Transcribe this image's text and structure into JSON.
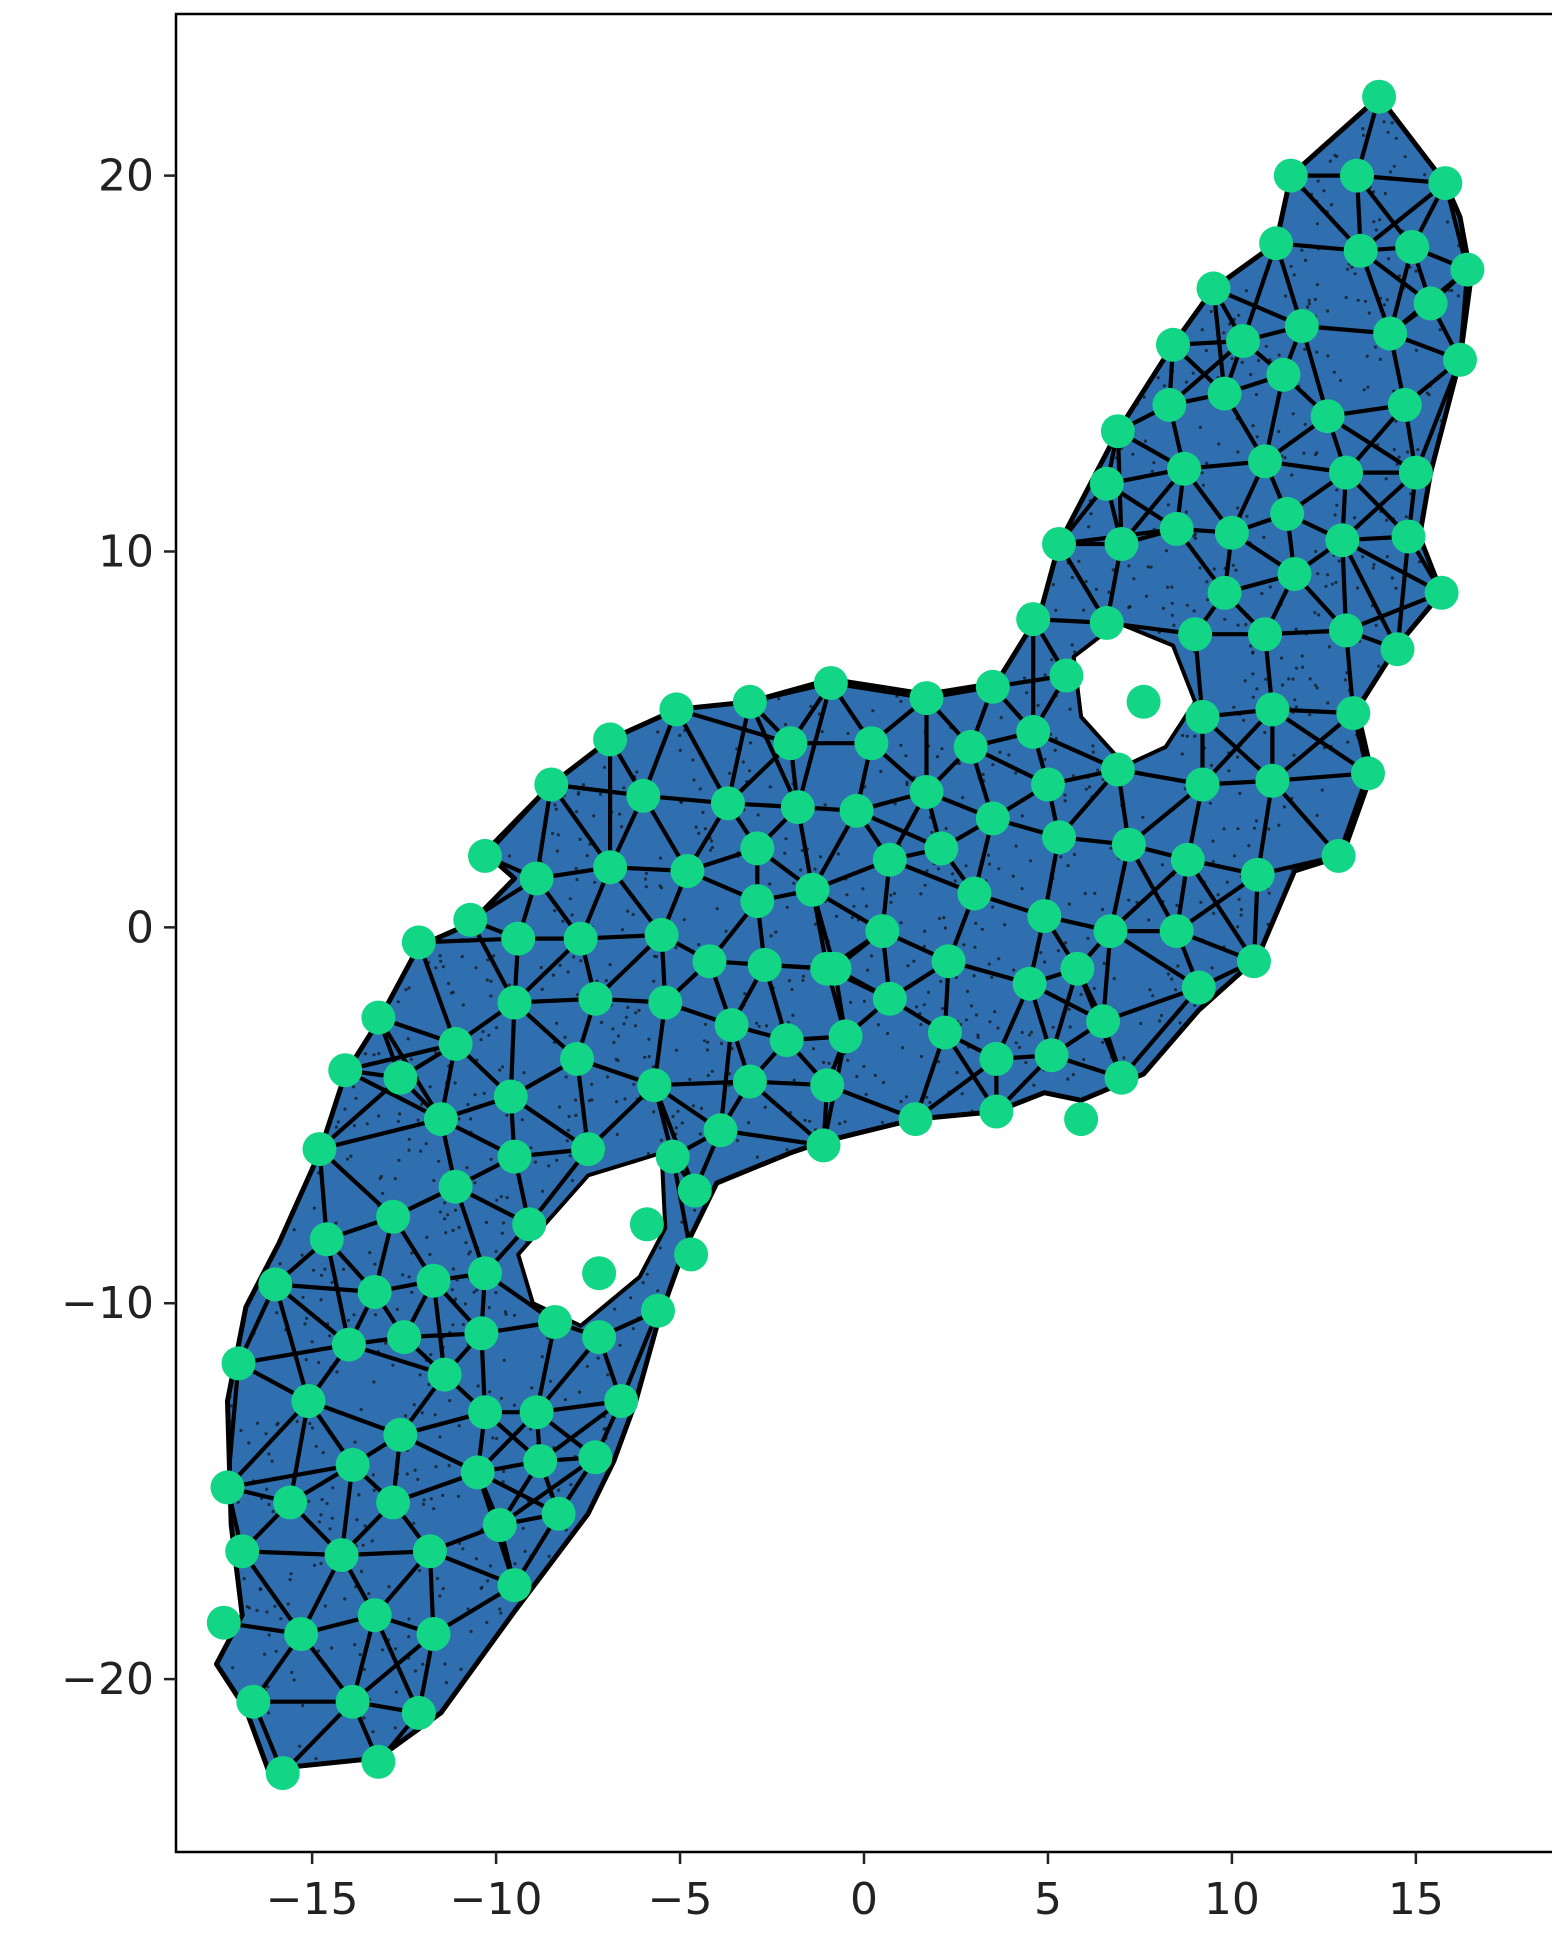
{
  "chart_data": {
    "type": "scatter",
    "description_level": "visual",
    "colors": {
      "fill": "#2f6fb0",
      "node": "#12d685",
      "edge": "#000000",
      "sample": "#111111"
    },
    "xlim": [
      -18.7,
      18.7
    ],
    "ylim": [
      -24.6,
      24.3
    ],
    "xticks": [
      -15,
      -10,
      -5,
      0,
      5,
      10,
      15
    ],
    "yticks": [
      -20,
      -10,
      0,
      10,
      20
    ],
    "xtick_labels": [
      "−15",
      "−10",
      "−5",
      "0",
      "5",
      "10",
      "15"
    ],
    "ytick_labels": [
      "−20",
      "−10",
      "0",
      "10",
      "20"
    ],
    "grid": false,
    "legend": "none",
    "title": "",
    "xlabel": "",
    "ylabel": "",
    "hull": [
      [
        -16.2,
        -22.4
      ],
      [
        -13.2,
        -22.1
      ],
      [
        -11.5,
        -20.9
      ],
      [
        -9.5,
        -18.2
      ],
      [
        -7.5,
        -15.6
      ],
      [
        -6.8,
        -14.2
      ],
      [
        -6.2,
        -12.6
      ],
      [
        -5.6,
        -10.5
      ],
      [
        -4.9,
        -8.6
      ],
      [
        -4.0,
        -6.8
      ],
      [
        -2.0,
        -6.0
      ],
      [
        -1.1,
        -5.7
      ],
      [
        1.4,
        -5.1
      ],
      [
        3.6,
        -4.9
      ],
      [
        4.9,
        -4.4
      ],
      [
        5.9,
        -4.6
      ],
      [
        7.6,
        -3.9
      ],
      [
        9.1,
        -2.2
      ],
      [
        10.7,
        -0.8
      ],
      [
        11.7,
        1.5
      ],
      [
        13.0,
        1.9
      ],
      [
        13.8,
        4.1
      ],
      [
        13.4,
        5.8
      ],
      [
        14.5,
        7.5
      ],
      [
        15.7,
        8.9
      ],
      [
        15.1,
        10.4
      ],
      [
        15.4,
        12.1
      ],
      [
        16.2,
        15.1
      ],
      [
        16.5,
        17.3
      ],
      [
        16.2,
        18.9
      ],
      [
        15.8,
        19.8
      ],
      [
        14.0,
        22.1
      ],
      [
        11.6,
        20.0
      ],
      [
        11.2,
        18.2
      ],
      [
        9.5,
        17.0
      ],
      [
        8.4,
        15.5
      ],
      [
        6.9,
        13.2
      ],
      [
        5.3,
        10.2
      ],
      [
        4.8,
        8.4
      ],
      [
        3.6,
        6.5
      ],
      [
        1.7,
        6.2
      ],
      [
        -0.9,
        6.6
      ],
      [
        -3.1,
        6.0
      ],
      [
        -5.1,
        5.8
      ],
      [
        -6.9,
        5.0
      ],
      [
        -8.5,
        3.8
      ],
      [
        -10.3,
        2.0
      ],
      [
        -9.5,
        1.3
      ],
      [
        -10.7,
        0.1
      ],
      [
        -12.1,
        -0.5
      ],
      [
        -13.2,
        -2.5
      ],
      [
        -14.1,
        -3.9
      ],
      [
        -14.8,
        -6.0
      ],
      [
        -15.9,
        -8.4
      ],
      [
        -16.8,
        -10.1
      ],
      [
        -17.3,
        -12.6
      ],
      [
        -17.2,
        -15.9
      ],
      [
        -16.9,
        -18.3
      ],
      [
        -17.6,
        -19.6
      ],
      [
        -16.8,
        -20.8
      ]
    ],
    "holes": [
      [
        [
          -9.4,
          -8.7
        ],
        [
          -7.5,
          -6.6
        ],
        [
          -5.5,
          -6.0
        ],
        [
          -5.4,
          -8.0
        ],
        [
          -6.1,
          -9.3
        ],
        [
          -7.7,
          -10.6
        ],
        [
          -9.0,
          -10.0
        ]
      ],
      [
        [
          5.7,
          7.2
        ],
        [
          6.9,
          8.1
        ],
        [
          8.4,
          7.5
        ],
        [
          9.0,
          6.0
        ],
        [
          8.2,
          4.8
        ],
        [
          7.1,
          4.3
        ],
        [
          5.9,
          5.6
        ]
      ]
    ],
    "nodes": [
      [
        14.0,
        22.1
      ],
      [
        11.6,
        20.0
      ],
      [
        13.4,
        20.0
      ],
      [
        15.8,
        19.8
      ],
      [
        11.2,
        18.2
      ],
      [
        13.5,
        18.0
      ],
      [
        14.9,
        18.1
      ],
      [
        16.4,
        17.5
      ],
      [
        9.5,
        17.0
      ],
      [
        11.9,
        16.0
      ],
      [
        15.4,
        16.6
      ],
      [
        8.4,
        15.5
      ],
      [
        10.3,
        15.6
      ],
      [
        14.3,
        15.8
      ],
      [
        16.2,
        15.1
      ],
      [
        11.4,
        14.7
      ],
      [
        8.3,
        13.9
      ],
      [
        9.8,
        14.2
      ],
      [
        12.6,
        13.6
      ],
      [
        14.7,
        13.9
      ],
      [
        6.9,
        13.2
      ],
      [
        8.7,
        12.2
      ],
      [
        10.9,
        12.4
      ],
      [
        13.1,
        12.1
      ],
      [
        15.0,
        12.1
      ],
      [
        6.6,
        11.8
      ],
      [
        11.5,
        11.0
      ],
      [
        8.5,
        10.6
      ],
      [
        10.0,
        10.5
      ],
      [
        13.0,
        10.3
      ],
      [
        14.8,
        10.4
      ],
      [
        5.3,
        10.2
      ],
      [
        7.0,
        10.2
      ],
      [
        9.8,
        8.9
      ],
      [
        11.7,
        9.4
      ],
      [
        15.7,
        8.9
      ],
      [
        4.6,
        8.2
      ],
      [
        6.6,
        8.1
      ],
      [
        9.0,
        7.8
      ],
      [
        10.9,
        7.8
      ],
      [
        13.1,
        7.9
      ],
      [
        14.5,
        7.4
      ],
      [
        3.5,
        6.4
      ],
      [
        5.5,
        6.7
      ],
      [
        1.7,
        6.1
      ],
      [
        -0.9,
        6.5
      ],
      [
        -3.1,
        6.0
      ],
      [
        -5.1,
        5.8
      ],
      [
        -6.9,
        5.0
      ],
      [
        7.6,
        6.0
      ],
      [
        9.2,
        5.6
      ],
      [
        11.1,
        5.8
      ],
      [
        13.3,
        5.7
      ],
      [
        -2.0,
        4.9
      ],
      [
        0.2,
        4.9
      ],
      [
        2.9,
        4.8
      ],
      [
        4.6,
        5.2
      ],
      [
        -8.5,
        3.8
      ],
      [
        -6.0,
        3.5
      ],
      [
        -3.7,
        3.3
      ],
      [
        -1.8,
        3.2
      ],
      [
        -0.2,
        3.1
      ],
      [
        1.7,
        3.6
      ],
      [
        3.5,
        2.9
      ],
      [
        5.0,
        3.8
      ],
      [
        6.9,
        4.2
      ],
      [
        9.2,
        3.8
      ],
      [
        11.1,
        3.9
      ],
      [
        13.7,
        4.1
      ],
      [
        -10.3,
        1.9
      ],
      [
        -8.9,
        1.3
      ],
      [
        -6.9,
        1.6
      ],
      [
        -4.8,
        1.5
      ],
      [
        -2.9,
        2.1
      ],
      [
        -1.4,
        1.0
      ],
      [
        0.7,
        1.8
      ],
      [
        2.1,
        2.1
      ],
      [
        5.3,
        2.4
      ],
      [
        7.2,
        2.2
      ],
      [
        8.8,
        1.8
      ],
      [
        10.7,
        1.4
      ],
      [
        12.9,
        1.9
      ],
      [
        -10.7,
        0.2
      ],
      [
        -12.1,
        -0.4
      ],
      [
        -9.4,
        -0.3
      ],
      [
        -7.7,
        -0.3
      ],
      [
        -5.5,
        -0.2
      ],
      [
        -2.9,
        0.7
      ],
      [
        -0.8,
        -1.1
      ],
      [
        0.5,
        -0.1
      ],
      [
        3.0,
        0.9
      ],
      [
        4.9,
        0.3
      ],
      [
        6.7,
        -0.1
      ],
      [
        8.5,
        -0.1
      ],
      [
        -4.2,
        -0.9
      ],
      [
        -2.7,
        -1.0
      ],
      [
        -1.0,
        -1.1
      ],
      [
        2.3,
        -0.9
      ],
      [
        5.8,
        -1.1
      ],
      [
        10.6,
        -0.9
      ],
      [
        -13.2,
        -2.4
      ],
      [
        -11.1,
        -3.1
      ],
      [
        -9.5,
        -2.0
      ],
      [
        -7.3,
        -1.9
      ],
      [
        -5.4,
        -2.0
      ],
      [
        -3.6,
        -2.6
      ],
      [
        -2.1,
        -3.0
      ],
      [
        -0.5,
        -2.9
      ],
      [
        0.7,
        -1.9
      ],
      [
        2.2,
        -2.8
      ],
      [
        4.5,
        -1.5
      ],
      [
        9.1,
        -1.6
      ],
      [
        -14.1,
        -3.8
      ],
      [
        -12.6,
        -4.0
      ],
      [
        -7.8,
        -3.5
      ],
      [
        -3.1,
        -4.1
      ],
      [
        -5.7,
        -4.2
      ],
      [
        -9.6,
        -4.5
      ],
      [
        -1.0,
        -4.2
      ],
      [
        3.6,
        -3.5
      ],
      [
        5.1,
        -3.4
      ],
      [
        6.5,
        -2.5
      ],
      [
        -14.8,
        -5.9
      ],
      [
        -11.5,
        -5.1
      ],
      [
        -9.5,
        -6.1
      ],
      [
        -7.5,
        -5.9
      ],
      [
        -5.2,
        -6.1
      ],
      [
        -3.9,
        -5.4
      ],
      [
        -1.1,
        -5.8
      ],
      [
        1.4,
        -5.1
      ],
      [
        3.6,
        -4.9
      ],
      [
        5.9,
        -5.1
      ],
      [
        7.0,
        -4.0
      ],
      [
        -14.6,
        -8.3
      ],
      [
        -12.8,
        -7.7
      ],
      [
        -11.1,
        -6.9
      ],
      [
        -9.1,
        -7.9
      ],
      [
        -5.9,
        -7.9
      ],
      [
        -4.6,
        -7.0
      ],
      [
        -16.0,
        -9.5
      ],
      [
        -13.3,
        -9.7
      ],
      [
        -11.7,
        -9.4
      ],
      [
        -10.3,
        -9.2
      ],
      [
        -8.4,
        -10.5
      ],
      [
        -7.2,
        -9.2
      ],
      [
        -5.6,
        -10.2
      ],
      [
        -4.7,
        -8.7
      ],
      [
        -17.0,
        -11.6
      ],
      [
        -14.0,
        -11.1
      ],
      [
        -12.5,
        -10.9
      ],
      [
        -10.4,
        -10.8
      ],
      [
        -7.2,
        -10.9
      ],
      [
        -15.1,
        -12.6
      ],
      [
        -11.4,
        -11.9
      ],
      [
        -10.3,
        -12.9
      ],
      [
        -8.9,
        -12.9
      ],
      [
        -6.6,
        -12.6
      ],
      [
        -13.9,
        -14.3
      ],
      [
        -12.6,
        -13.5
      ],
      [
        -10.5,
        -14.5
      ],
      [
        -8.8,
        -14.2
      ],
      [
        -7.3,
        -14.1
      ],
      [
        -17.3,
        -14.9
      ],
      [
        -15.6,
        -15.3
      ],
      [
        -12.8,
        -15.3
      ],
      [
        -9.9,
        -15.9
      ],
      [
        -8.3,
        -15.6
      ],
      [
        -16.9,
        -16.6
      ],
      [
        -14.2,
        -16.7
      ],
      [
        -11.8,
        -16.6
      ],
      [
        -9.5,
        -17.5
      ],
      [
        -17.4,
        -18.5
      ],
      [
        -15.3,
        -18.8
      ],
      [
        -13.3,
        -18.3
      ],
      [
        -11.7,
        -18.8
      ],
      [
        -16.6,
        -20.6
      ],
      [
        -13.9,
        -20.6
      ],
      [
        -12.1,
        -20.9
      ],
      [
        -15.8,
        -22.5
      ],
      [
        -13.2,
        -22.2
      ]
    ]
  }
}
